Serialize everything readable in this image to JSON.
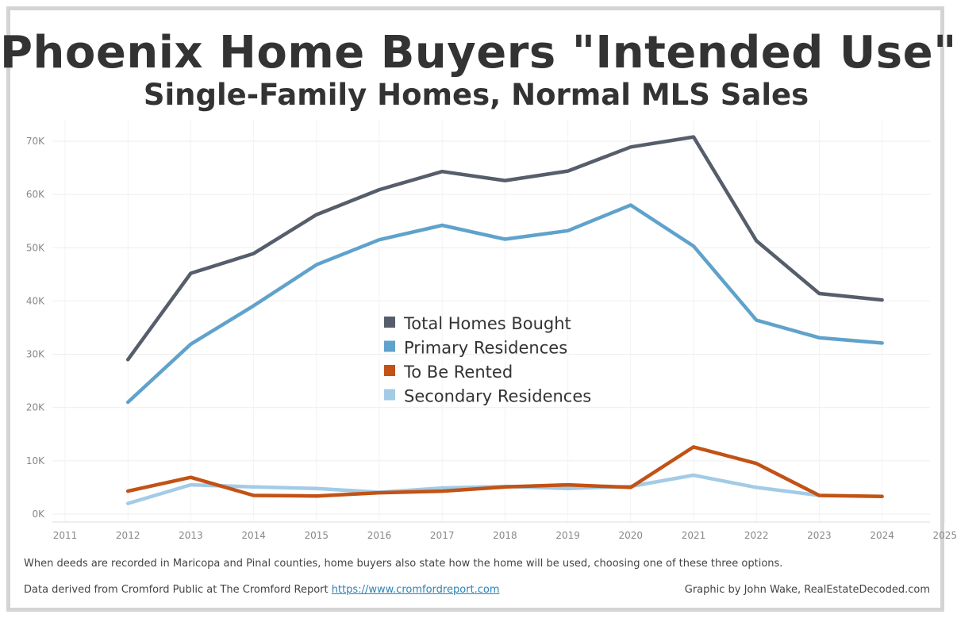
{
  "title": "Phoenix Home Buyers \"Intended Use\"",
  "subtitle": "Single-Family Homes, Normal MLS Sales",
  "footnote": "When deeds are recorded in Maricopa and Pinal counties, home buyers also state how the home will be used, choosing one of these three options.",
  "source": {
    "text": "Data derived from Cromford Public at The Cromford Report ",
    "link": "https://www.cromfordreport.com"
  },
  "credit": "Graphic by John Wake, RealEstateDecoded.com",
  "chart_data": {
    "type": "line",
    "title": "Phoenix Home Buyers \"Intended Use\"",
    "subtitle": "Single-Family Homes, Normal MLS Sales",
    "xlim": [
      2011,
      2025
    ],
    "ylim": [
      0,
      75000
    ],
    "x_ticks": [
      "2011",
      "2012",
      "2013",
      "2014",
      "2015",
      "2016",
      "2017",
      "2018",
      "2019",
      "2020",
      "2021",
      "2022",
      "2023",
      "2024",
      "2025"
    ],
    "y_ticks": [
      {
        "value": 0,
        "label": "0K"
      },
      {
        "value": 10000,
        "label": "10K"
      },
      {
        "value": 20000,
        "label": "20K"
      },
      {
        "value": 30000,
        "label": "30K"
      },
      {
        "value": 40000,
        "label": "40K"
      },
      {
        "value": 50000,
        "label": "50K"
      },
      {
        "value": 60000,
        "label": "60K"
      },
      {
        "value": 70000,
        "label": "70K"
      }
    ],
    "grid": true,
    "legend_position": "center",
    "x": [
      2012,
      2013,
      2014,
      2015,
      2016,
      2017,
      2018,
      2019,
      2020,
      2021,
      2022,
      2023,
      2024
    ],
    "series": [
      {
        "name": "Total Homes Bought",
        "color": "#565d6b",
        "values": [
          29000,
          45200,
          48900,
          56200,
          60900,
          64300,
          62600,
          64400,
          68900,
          70800,
          51300,
          41400,
          40200
        ]
      },
      {
        "name": "Primary Residences",
        "color": "#5fa2cc",
        "values": [
          21000,
          31900,
          39100,
          46800,
          51500,
          54200,
          51600,
          53200,
          58000,
          50300,
          36400,
          33100,
          32100
        ]
      },
      {
        "name": "To Be Rented",
        "color": "#c25215",
        "values": [
          4300,
          6900,
          3500,
          3400,
          4000,
          4300,
          5100,
          5500,
          5000,
          12600,
          9500,
          3500,
          3300
        ]
      },
      {
        "name": "Secondary Residences",
        "color": "#a3cbe6",
        "values": [
          2000,
          5500,
          5100,
          4800,
          4100,
          4900,
          5200,
          4800,
          5200,
          7300,
          5000,
          3500,
          null
        ]
      }
    ]
  }
}
